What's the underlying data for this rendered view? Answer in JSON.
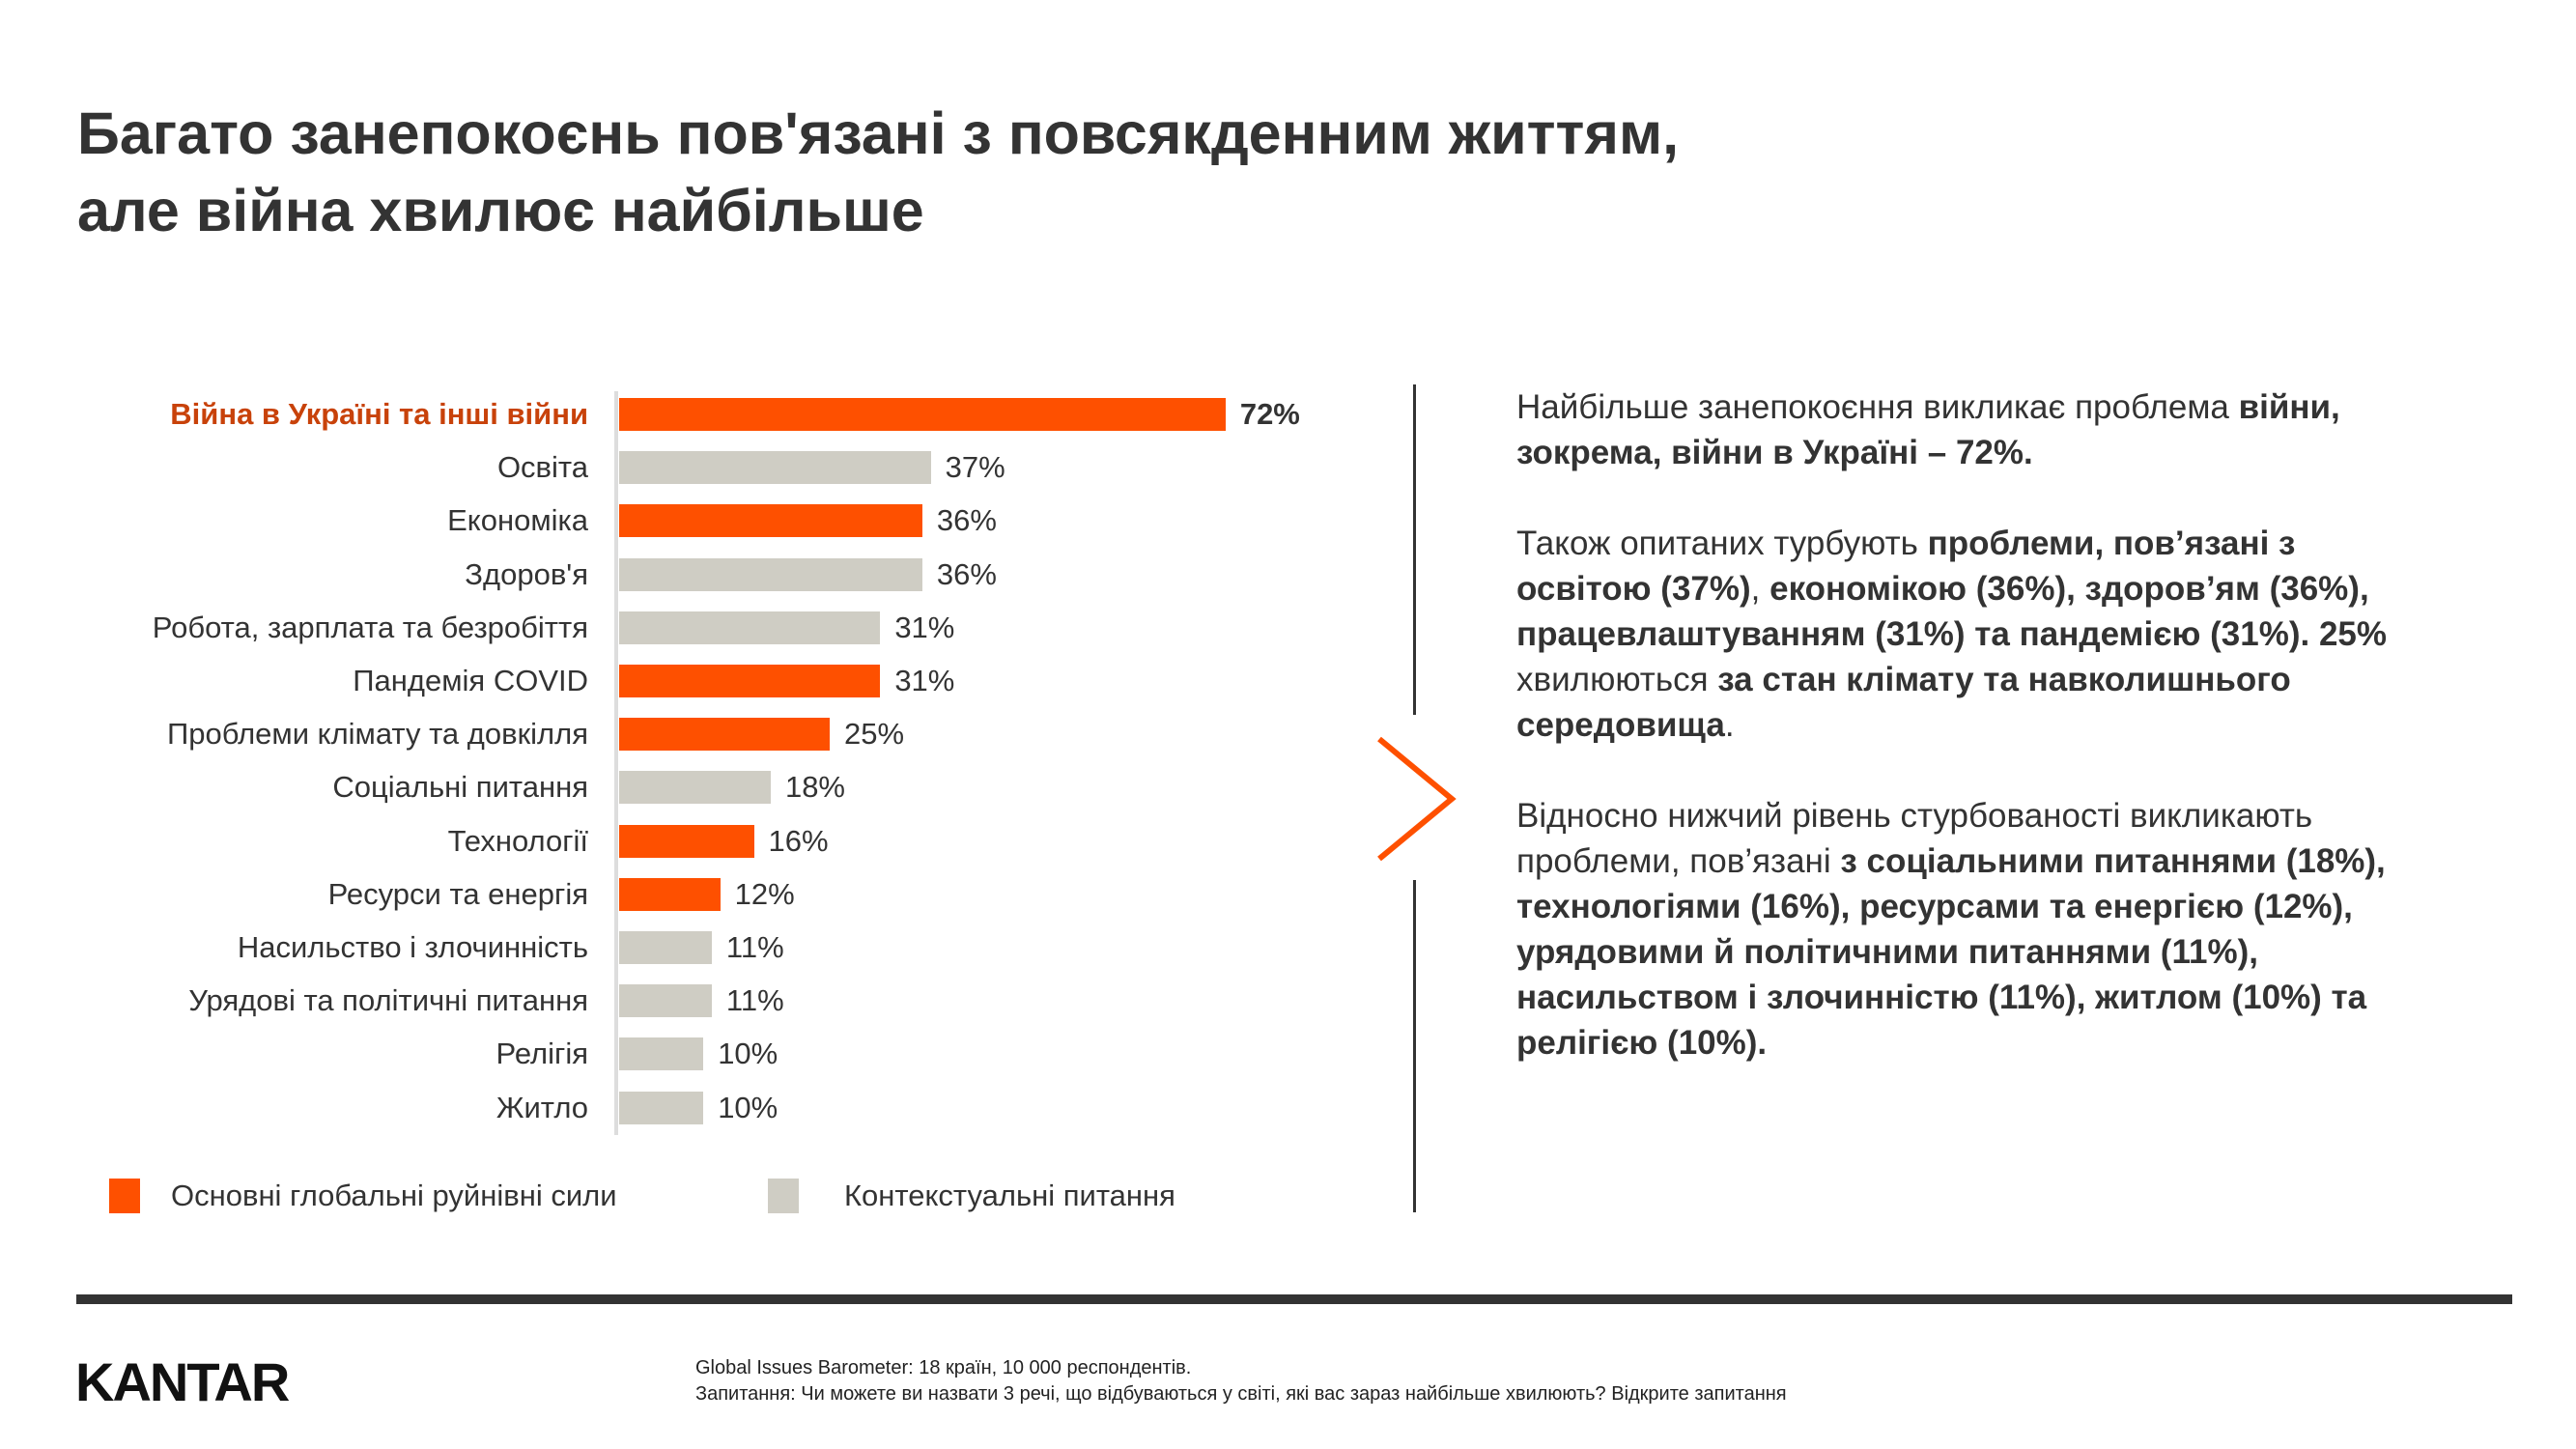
{
  "title": [
    "Багато занепокоєнь пов'язані з повсякденним життям,",
    "але війна хвилює найбільше"
  ],
  "colors": {
    "primary": "#fe5000",
    "contextual": "#cfcdc4",
    "highlight_label": "#c8420a"
  },
  "chart_data": {
    "type": "bar",
    "orientation": "horizontal",
    "categories": [
      "Війна в Україні та інші війни",
      "Освіта",
      "Економіка",
      "Здоров'я",
      "Робота, зарплата та безробіття",
      "Пандемія COVID",
      "Проблеми клімату та довкілля",
      "Соціальні питання",
      "Технології",
      "Ресурси та енергія",
      "Насильство і злочинність",
      "Урядові та політичні питання",
      "Релігія",
      "Житло"
    ],
    "values": [
      72,
      37,
      36,
      36,
      31,
      31,
      25,
      18,
      16,
      12,
      11,
      11,
      10,
      10
    ],
    "value_labels": [
      "72%",
      "37%",
      "36%",
      "36%",
      "31%",
      "31%",
      "25%",
      "18%",
      "16%",
      "12%",
      "11%",
      "11%",
      "10%",
      "10%"
    ],
    "groups": [
      "primary",
      "contextual",
      "primary",
      "contextual",
      "contextual",
      "primary",
      "primary",
      "contextual",
      "primary",
      "primary",
      "contextual",
      "contextual",
      "contextual",
      "contextual"
    ],
    "legend": [
      {
        "name": "Основні глобальні руйнівні сили",
        "group": "primary"
      },
      {
        "name": "Контекстуальні питання",
        "group": "contextual"
      }
    ],
    "legend_position": "bottom",
    "grid": false,
    "xlim": [
      0,
      72
    ]
  },
  "description": [
    [
      [
        0,
        "Найбільше занепокоєння викликає проблема "
      ],
      [
        1,
        "війни,"
      ]
    ],
    [
      [
        1,
        "зокрема, війни в Україні – 72%."
      ]
    ],
    [],
    [
      [
        0,
        "Також опитаних турбують "
      ],
      [
        1,
        "проблеми, пов’язані з"
      ]
    ],
    [
      [
        1,
        "освітою (37%)"
      ],
      [
        0,
        ", "
      ],
      [
        1,
        "економікою (36%), здоров’ям (36%),"
      ]
    ],
    [
      [
        1,
        "працевлаштуванням (31%) та пандемією (31%). 25%"
      ]
    ],
    [
      [
        0,
        "хвилюються "
      ],
      [
        1,
        "за стан клімату та навколишнього"
      ]
    ],
    [
      [
        1,
        "середовища"
      ],
      [
        0,
        "."
      ]
    ],
    [],
    [
      [
        0,
        "Відносно нижчий рівень стурбованості викликають"
      ]
    ],
    [
      [
        0,
        "проблеми, пов’язані "
      ],
      [
        1,
        "з соціальними питаннями (18%),"
      ]
    ],
    [
      [
        1,
        "технологіями (16%), ресурсами та енергією (12%),"
      ]
    ],
    [
      [
        1,
        "урядовими й політичними питаннями (11%),"
      ]
    ],
    [
      [
        1,
        "насильством і злочинністю (11%), житлом (10%) та"
      ]
    ],
    [
      [
        1,
        "релігією (10%)."
      ]
    ]
  ],
  "logo": "KANTAR",
  "footer": [
    "Global Issues Barometer: 18 країн, 10 000 респондентів.",
    "Запитання: Чи можете ви назвати 3 речі, що відбуваються у світі, які вас зараз найбільше хвилюють? Відкрите запитання"
  ]
}
